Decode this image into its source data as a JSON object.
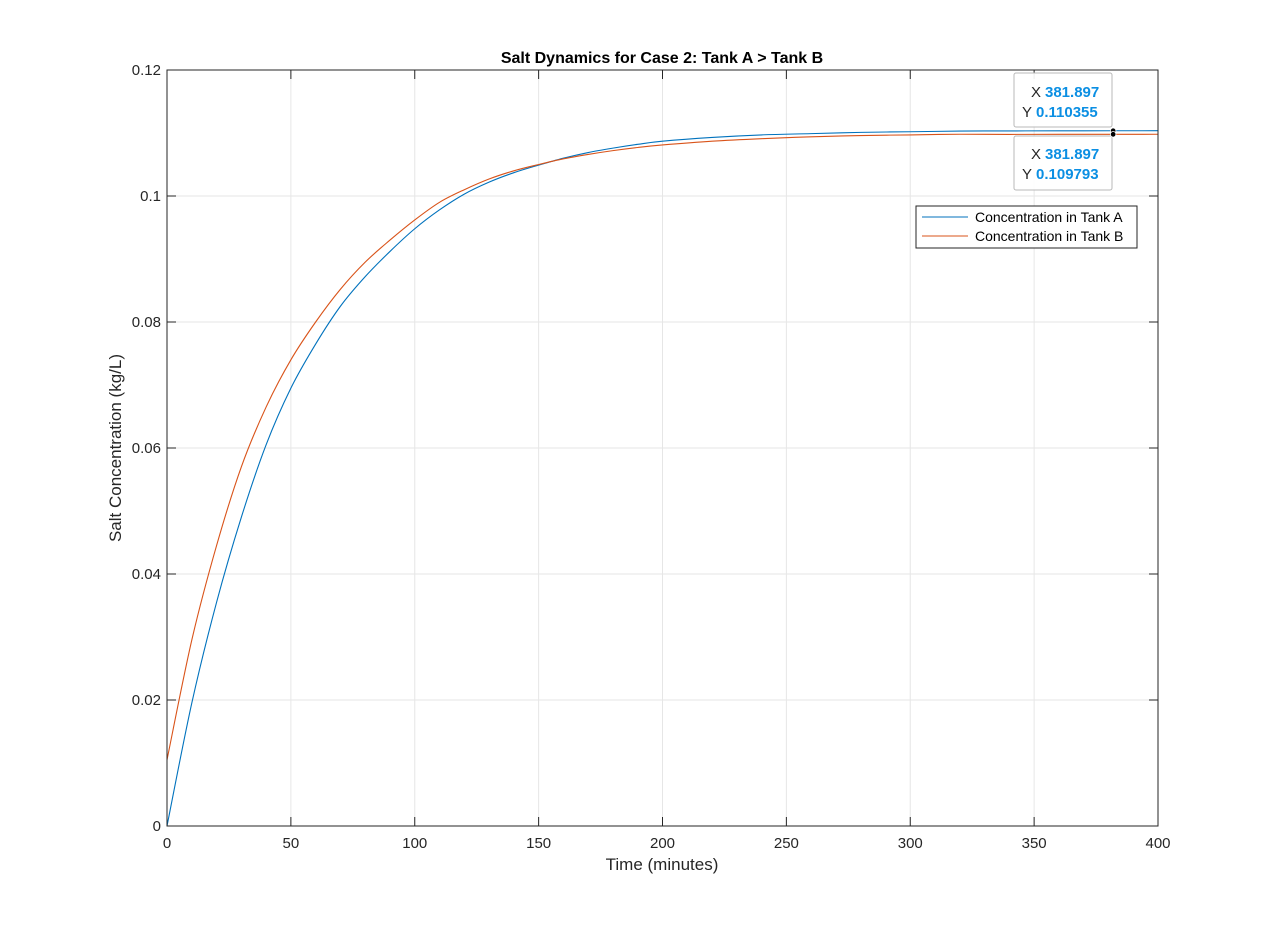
{
  "chart_data": {
    "type": "line",
    "title": "Salt Dynamics for Case 2: Tank A > Tank B",
    "xlabel": "Time (minutes)",
    "ylabel": "Salt Concentration (kg/L)",
    "xlim": [
      0,
      400
    ],
    "ylim": [
      0,
      0.12
    ],
    "xticks": [
      0,
      50,
      100,
      150,
      200,
      250,
      300,
      350,
      400
    ],
    "xtick_labels": [
      "0",
      "50",
      "100",
      "150",
      "200",
      "250",
      "300",
      "350",
      "400"
    ],
    "yticks": [
      0,
      0.02,
      0.04,
      0.06,
      0.08,
      0.1,
      0.12
    ],
    "ytick_labels": [
      "0",
      "0.02",
      "0.04",
      "0.06",
      "0.08",
      "0.1",
      "0.12"
    ],
    "grid": true,
    "legend_position": "top-right",
    "x": [
      0,
      10,
      20,
      30,
      40,
      50,
      60,
      70,
      80,
      90,
      100,
      110,
      120,
      130,
      140,
      150,
      160,
      170,
      180,
      190,
      200,
      220,
      240,
      260,
      280,
      300,
      320,
      340,
      360,
      381.897,
      400
    ],
    "series": [
      {
        "name": "Concentration in Tank A",
        "color": "#0072bd",
        "values": [
          0,
          0.0195,
          0.0355,
          0.049,
          0.0605,
          0.0695,
          0.0765,
          0.0825,
          0.0872,
          0.0912,
          0.0948,
          0.0978,
          0.1003,
          0.1022,
          0.1037,
          0.1049,
          0.106,
          0.1069,
          0.1076,
          0.1082,
          0.1087,
          0.1093,
          0.1097,
          0.1099,
          0.1101,
          0.1102,
          0.1103,
          0.11033,
          0.11035,
          0.110355,
          0.11036
        ]
      },
      {
        "name": "Concentration in Tank B",
        "color": "#d95319",
        "values": [
          0.0105,
          0.0295,
          0.0445,
          0.057,
          0.0665,
          0.074,
          0.08,
          0.0852,
          0.0895,
          0.093,
          0.0962,
          0.099,
          0.101,
          0.1027,
          0.104,
          0.105,
          0.1059,
          0.1066,
          0.1072,
          0.1077,
          0.1081,
          0.1087,
          0.1091,
          0.1094,
          0.1096,
          0.1097,
          0.1098,
          0.10978,
          0.10979,
          0.109793,
          0.1098
        ]
      }
    ],
    "datatips": [
      {
        "x_key": "X",
        "x_value": "381.897",
        "y_key": "Y",
        "y_value": "0.110355",
        "x": 381.897,
        "y": 0.110355,
        "placement": "above"
      },
      {
        "x_key": "X",
        "x_value": "381.897",
        "y_key": "Y",
        "y_value": "0.109793",
        "x": 381.897,
        "y": 0.109793,
        "placement": "below"
      }
    ]
  }
}
